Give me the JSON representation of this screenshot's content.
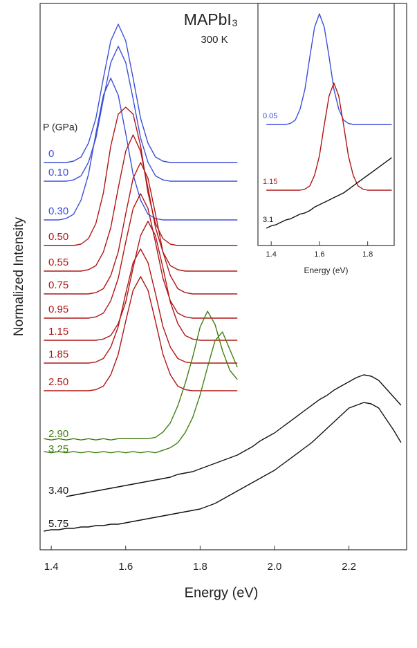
{
  "chart_data": [
    {
      "type": "line",
      "title": "MAPbI₃",
      "subtitle": "300 K",
      "x_label": "Energy (eV)",
      "y_label": "Normalized Intensity",
      "legend_title": "P (GPa)",
      "xlim": [
        1.37,
        2.355
      ],
      "xticks": [
        1.4,
        1.6,
        1.8,
        {
          "value": 2,
          "label": "2.0"
        },
        2.2
      ],
      "x": [
        1.38,
        1.4,
        1.42,
        1.44,
        1.46,
        1.48,
        1.5,
        1.52,
        1.54,
        1.56,
        1.58,
        1.6,
        1.62,
        1.64,
        1.66,
        1.68,
        1.7,
        1.72,
        1.74,
        1.76,
        1.78,
        1.8,
        1.82,
        1.84,
        1.86,
        1.88,
        1.9,
        1.92,
        1.94,
        1.96,
        1.98,
        2,
        2.02,
        2.04,
        2.06,
        2.08,
        2.1,
        2.12,
        2.14,
        2.16,
        2.18,
        2.2,
        2.22,
        2.24,
        2.26,
        2.28,
        2.3,
        2.32,
        2.34
      ],
      "series": [
        {
          "name": "0",
          "color": "#3a4fd8",
          "values": [
            0,
            0,
            0,
            0,
            0.01,
            0.04,
            0.14,
            0.32,
            0.61,
            0.88,
            1,
            0.88,
            0.61,
            0.32,
            0.14,
            0.04,
            0.01,
            0,
            0,
            0,
            0,
            0,
            0,
            0,
            0,
            0,
            0,
            null,
            null,
            null,
            null,
            null,
            null,
            null,
            null,
            null,
            null,
            null,
            null,
            null,
            null,
            null,
            null,
            null,
            null,
            null,
            null,
            null,
            null
          ]
        },
        {
          "name": "0.10",
          "color": "#3a4fd8",
          "values": [
            0,
            0,
            0,
            0,
            0.01,
            0.04,
            0.14,
            0.32,
            0.61,
            0.88,
            1,
            0.88,
            0.61,
            0.32,
            0.14,
            0.04,
            0.01,
            0,
            0,
            0,
            0,
            0,
            0,
            0,
            0,
            0,
            0,
            null,
            null,
            null,
            null,
            null,
            null,
            null,
            null,
            null,
            null,
            null,
            null,
            null,
            null,
            null,
            null,
            null,
            null,
            null,
            null,
            null,
            null
          ]
        },
        {
          "name": "0.30",
          "color": "#3a4fd8",
          "values": [
            0,
            0,
            0,
            0.01,
            0.04,
            0.14,
            0.32,
            0.61,
            0.88,
            1,
            0.88,
            0.61,
            0.32,
            0.14,
            0.04,
            0.01,
            0,
            0,
            0,
            0,
            0,
            0,
            0,
            0,
            0,
            0,
            0,
            null,
            null,
            null,
            null,
            null,
            null,
            null,
            null,
            null,
            null,
            null,
            null,
            null,
            null,
            null,
            null,
            null,
            null,
            null,
            null,
            null,
            null
          ]
        },
        {
          "name": "0.50",
          "color": "#b01515",
          "values": [
            0,
            0,
            0,
            0,
            0,
            0.01,
            0.05,
            0.16,
            0.38,
            0.72,
            0.95,
            1,
            0.95,
            0.72,
            0.38,
            0.16,
            0.05,
            0.01,
            0,
            0,
            0,
            0,
            0,
            0,
            0,
            0,
            0,
            null,
            null,
            null,
            null,
            null,
            null,
            null,
            null,
            null,
            null,
            null,
            null,
            null,
            null,
            null,
            null,
            null,
            null,
            null,
            null,
            null,
            null
          ]
        },
        {
          "name": "0.55",
          "color": "#b01515",
          "values": [
            0,
            0,
            0,
            0,
            0,
            0,
            0.01,
            0.04,
            0.14,
            0.32,
            0.61,
            0.88,
            1,
            0.88,
            0.61,
            0.32,
            0.14,
            0.04,
            0.01,
            0,
            0,
            0,
            0,
            0,
            0,
            0,
            0,
            null,
            null,
            null,
            null,
            null,
            null,
            null,
            null,
            null,
            null,
            null,
            null,
            null,
            null,
            null,
            null,
            null,
            null,
            null,
            null,
            null,
            null
          ]
        },
        {
          "name": "0.75",
          "color": "#b01515",
          "values": [
            0,
            0,
            0,
            0,
            0,
            0,
            0,
            0.01,
            0.04,
            0.14,
            0.32,
            0.61,
            0.88,
            1,
            0.88,
            0.61,
            0.32,
            0.14,
            0.04,
            0.01,
            0,
            0,
            0,
            0,
            0,
            0,
            0,
            null,
            null,
            null,
            null,
            null,
            null,
            null,
            null,
            null,
            null,
            null,
            null,
            null,
            null,
            null,
            null,
            null,
            null,
            null,
            null,
            null,
            null
          ]
        },
        {
          "name": "0.95",
          "color": "#b01515",
          "values": [
            0,
            0,
            0,
            0,
            0,
            0,
            0,
            0.01,
            0.04,
            0.14,
            0.32,
            0.61,
            0.88,
            1,
            0.88,
            0.61,
            0.32,
            0.14,
            0.04,
            0.01,
            0,
            0,
            0,
            0,
            0,
            0,
            0,
            null,
            null,
            null,
            null,
            null,
            null,
            null,
            null,
            null,
            null,
            null,
            null,
            null,
            null,
            null,
            null,
            null,
            null,
            null,
            null,
            null,
            null
          ]
        },
        {
          "name": "1.15",
          "color": "#b01515",
          "values": [
            0,
            0,
            0,
            0,
            0,
            0,
            0,
            0,
            0.01,
            0.04,
            0.14,
            0.32,
            0.61,
            0.88,
            1,
            0.88,
            0.61,
            0.32,
            0.14,
            0.04,
            0.01,
            0,
            0,
            0,
            0,
            0,
            0,
            null,
            null,
            null,
            null,
            null,
            null,
            null,
            null,
            null,
            null,
            null,
            null,
            null,
            null,
            null,
            null,
            null,
            null,
            null,
            null,
            null,
            null
          ]
        },
        {
          "name": "1.85",
          "color": "#b01515",
          "values": [
            0,
            0,
            0,
            0,
            0,
            0,
            0,
            0.01,
            0.04,
            0.14,
            0.32,
            0.61,
            0.88,
            1,
            0.88,
            0.61,
            0.32,
            0.14,
            0.04,
            0.01,
            0,
            0,
            0,
            0,
            0,
            0,
            0,
            null,
            null,
            null,
            null,
            null,
            null,
            null,
            null,
            null,
            null,
            null,
            null,
            null,
            null,
            null,
            null,
            null,
            null,
            null,
            null,
            null,
            null
          ]
        },
        {
          "name": "2.50",
          "color": "#b01515",
          "values": [
            0,
            0,
            0,
            0,
            0,
            0,
            0,
            0.01,
            0.04,
            0.14,
            0.32,
            0.61,
            0.88,
            1,
            0.88,
            0.61,
            0.32,
            0.14,
            0.04,
            0.01,
            0,
            0,
            0,
            0,
            0,
            0,
            0,
            null,
            null,
            null,
            null,
            null,
            null,
            null,
            null,
            null,
            null,
            null,
            null,
            null,
            null,
            null,
            null,
            null,
            null,
            null,
            null,
            null,
            null
          ]
        },
        {
          "name": "2.90",
          "color": "#3f7f10",
          "values": [
            0.03,
            0.02,
            0.03,
            0.02,
            0.03,
            0.02,
            0.03,
            0.02,
            0.03,
            0.02,
            0.03,
            0.03,
            0.03,
            0.03,
            0.03,
            0.04,
            0.08,
            0.15,
            0.28,
            0.45,
            0.65,
            0.88,
            1,
            0.9,
            0.7,
            0.55,
            0.48,
            null,
            null,
            null,
            null,
            null,
            null,
            null,
            null,
            null,
            null,
            null,
            null,
            null,
            null,
            null,
            null,
            null,
            null,
            null,
            null,
            null,
            null
          ]
        },
        {
          "name": "3.25",
          "color": "#3f7f10",
          "values": [
            0.05,
            0.04,
            0.05,
            0.04,
            0.05,
            0.04,
            0.05,
            0.04,
            0.05,
            0.04,
            0.05,
            0.04,
            0.05,
            0.04,
            0.05,
            0.04,
            0.06,
            0.08,
            0.12,
            0.2,
            0.32,
            0.5,
            0.72,
            0.93,
            1,
            0.86,
            0.72,
            null,
            null,
            null,
            null,
            null,
            null,
            null,
            null,
            null,
            null,
            null,
            null,
            null,
            null,
            null,
            null,
            null,
            null,
            null,
            null,
            null,
            null
          ]
        },
        {
          "name": "3.40",
          "color": "#111111",
          "values": [
            null,
            null,
            null,
            0.02,
            0.03,
            0.04,
            0.05,
            0.06,
            0.07,
            0.08,
            0.09,
            0.1,
            0.11,
            0.12,
            0.13,
            0.14,
            0.15,
            0.16,
            0.18,
            0.19,
            0.2,
            0.22,
            0.24,
            0.26,
            0.28,
            0.3,
            0.32,
            0.35,
            0.38,
            0.42,
            0.45,
            0.48,
            0.52,
            0.56,
            0.6,
            0.64,
            0.68,
            0.72,
            0.75,
            0.79,
            0.82,
            0.85,
            0.88,
            0.9,
            0.89,
            0.86,
            0.8,
            0.74,
            0.68
          ]
        },
        {
          "name": "5.75",
          "color": "#111111",
          "values": [
            0.01,
            0.02,
            0.02,
            0.03,
            0.03,
            0.04,
            0.04,
            0.05,
            0.05,
            0.06,
            0.06,
            0.07,
            0.08,
            0.09,
            0.1,
            0.11,
            0.12,
            0.13,
            0.14,
            0.15,
            0.16,
            0.17,
            0.19,
            0.21,
            0.24,
            0.27,
            0.3,
            0.33,
            0.36,
            0.39,
            0.42,
            0.45,
            0.49,
            0.53,
            0.57,
            0.61,
            0.65,
            0.7,
            0.75,
            0.8,
            0.85,
            0.9,
            0.92,
            0.94,
            0.93,
            0.9,
            0.82,
            0.74,
            0.65
          ]
        }
      ]
    },
    {
      "type": "line",
      "x_label": "Energy (eV)",
      "xlim": [
        1.345,
        1.91
      ],
      "xticks": [
        1.4,
        1.6,
        1.8
      ],
      "x": [
        1.38,
        1.4,
        1.42,
        1.44,
        1.46,
        1.48,
        1.5,
        1.52,
        1.54,
        1.56,
        1.58,
        1.6,
        1.62,
        1.64,
        1.66,
        1.68,
        1.7,
        1.72,
        1.74,
        1.76,
        1.78,
        1.8,
        1.82,
        1.84,
        1.86,
        1.88,
        1.9
      ],
      "series": [
        {
          "name": "0.05",
          "color": "#3a4fd8",
          "values": [
            0,
            0,
            0,
            0,
            0,
            0.01,
            0.04,
            0.14,
            0.32,
            0.61,
            0.88,
            1,
            0.88,
            0.61,
            0.32,
            0.14,
            0.04,
            0.01,
            0,
            0,
            0,
            0,
            0,
            0,
            0,
            0,
            0
          ]
        },
        {
          "name": "1.15",
          "color": "#b01515",
          "values": [
            0,
            0,
            0,
            0,
            0,
            0,
            0,
            0,
            0.01,
            0.04,
            0.14,
            0.32,
            0.61,
            0.88,
            1,
            0.88,
            0.61,
            0.32,
            0.14,
            0.04,
            0.01,
            0,
            0,
            0,
            0,
            0,
            0
          ]
        },
        {
          "name": "3.1",
          "color": "#111111",
          "values": [
            0,
            0.02,
            0.03,
            0.05,
            0.07,
            0.08,
            0.1,
            0.12,
            0.13,
            0.15,
            0.18,
            0.2,
            0.22,
            0.24,
            0.26,
            0.28,
            0.3,
            0.33,
            0.36,
            0.39,
            0.42,
            0.45,
            0.48,
            0.51,
            0.54,
            0.57,
            0.6
          ]
        }
      ]
    }
  ]
}
